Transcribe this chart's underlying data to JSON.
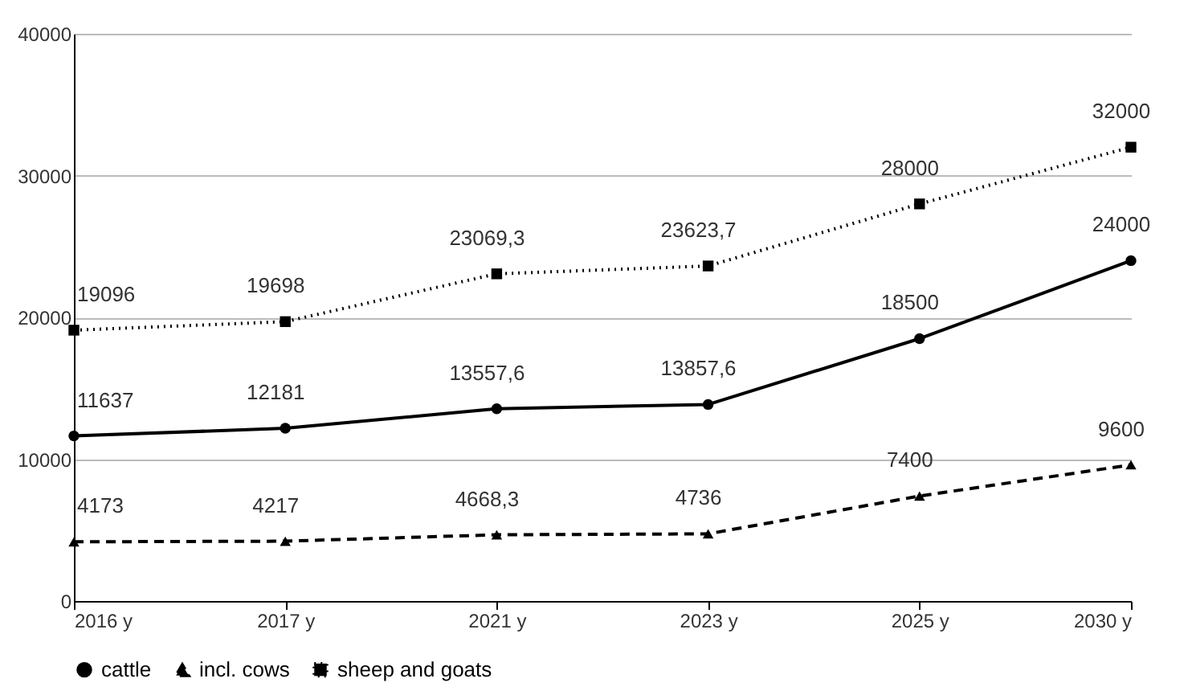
{
  "chart_data": {
    "type": "line",
    "categories": [
      "2016 y",
      "2017 y",
      "2021 y",
      "2023 y",
      "2025 y",
      "2030 y"
    ],
    "series": [
      {
        "name": "cattle",
        "color": "#000000",
        "marker": "circle",
        "line_style": "solid",
        "values": [
          11637,
          12181,
          13557.6,
          13857.6,
          18500,
          24000
        ],
        "value_labels": [
          "11637",
          "12181",
          "13557,6",
          "13857,6",
          "18500",
          "24000"
        ]
      },
      {
        "name": "incl. cows",
        "color": "#000000",
        "marker": "triangle",
        "line_style": "dashed",
        "values": [
          4173,
          4217,
          4668.3,
          4736,
          7400,
          9600
        ],
        "value_labels": [
          "4173",
          "4217",
          "4668,3",
          "4736",
          "7400",
          "9600"
        ]
      },
      {
        "name": "sheep and goats",
        "color": "#000000",
        "marker": "square",
        "line_style": "dotted",
        "values": [
          19096,
          19698,
          23069.3,
          23623.7,
          28000,
          32000
        ],
        "value_labels": [
          "19096",
          "19698",
          "23069,3",
          "23623,7",
          "28000",
          "32000"
        ]
      }
    ],
    "ylim": [
      0,
      40000
    ],
    "yticks": [
      0,
      10000,
      20000,
      30000,
      40000
    ],
    "grid": "y",
    "legend": "bottom"
  }
}
